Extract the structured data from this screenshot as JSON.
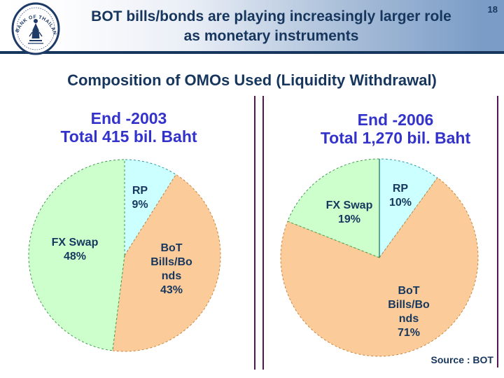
{
  "page": {
    "number": "18"
  },
  "header": {
    "title_line1": "BOT bills/bonds are playing increasingly larger role",
    "title_line2": "as monetary instruments",
    "logo_text": "BANK OF THAILAND",
    "text_color": "#17365D",
    "gradient_right": "#7a9cc6"
  },
  "section_title": "Composition of OMOs Used (Liquidity Withdrawal)",
  "source_note": "Source : BOT",
  "colors": {
    "navy_text": "#17365D",
    "panel_title_blue": "#3333CC",
    "divider_purple": "#521652",
    "rp_fill": "#CCFFFF",
    "bot_fill": "#FBCC99",
    "fx_fill": "#CCFFCC"
  },
  "chart_data": [
    {
      "type": "pie",
      "title": "End -2003",
      "subtitle": "Total 415 bil. Baht",
      "legend_position": "inside",
      "slices": [
        {
          "label": "RP",
          "pct": "9%",
          "value": 9,
          "color": "#CCFFFF",
          "stroke": "#2E9AA6",
          "label_lines": [
            "RP",
            "9%"
          ]
        },
        {
          "label": "BoT Bills/Bonds",
          "pct": "43%",
          "value": 43,
          "color": "#FBCC99",
          "stroke": "#C8843C",
          "label_lines": [
            "BoT",
            "Bills/Bo",
            "nds",
            "43%"
          ]
        },
        {
          "label": "FX Swap",
          "pct": "48%",
          "value": 48,
          "color": "#CCFFCC",
          "stroke": "#3F9B4C",
          "label_lines": [
            "FX Swap",
            "48%"
          ]
        }
      ]
    },
    {
      "type": "pie",
      "title": "End -2006",
      "subtitle": "Total 1,270 bil. Baht",
      "legend_position": "inside",
      "slices": [
        {
          "label": "RP",
          "pct": "10%",
          "value": 10,
          "color": "#CCFFFF",
          "stroke": "#2E9AA6",
          "label_lines": [
            "RP",
            "10%"
          ]
        },
        {
          "label": "BoT Bills/Bonds",
          "pct": "71%",
          "value": 71,
          "color": "#FBCC99",
          "stroke": "#C8843C",
          "label_lines": [
            "BoT",
            "Bills/Bo",
            "nds",
            "71%"
          ]
        },
        {
          "label": "FX Swap",
          "pct": "19%",
          "value": 19,
          "color": "#CCFFCC",
          "stroke": "#3F9B4C",
          "label_lines": [
            "FX Swap",
            "19%"
          ]
        }
      ]
    }
  ]
}
